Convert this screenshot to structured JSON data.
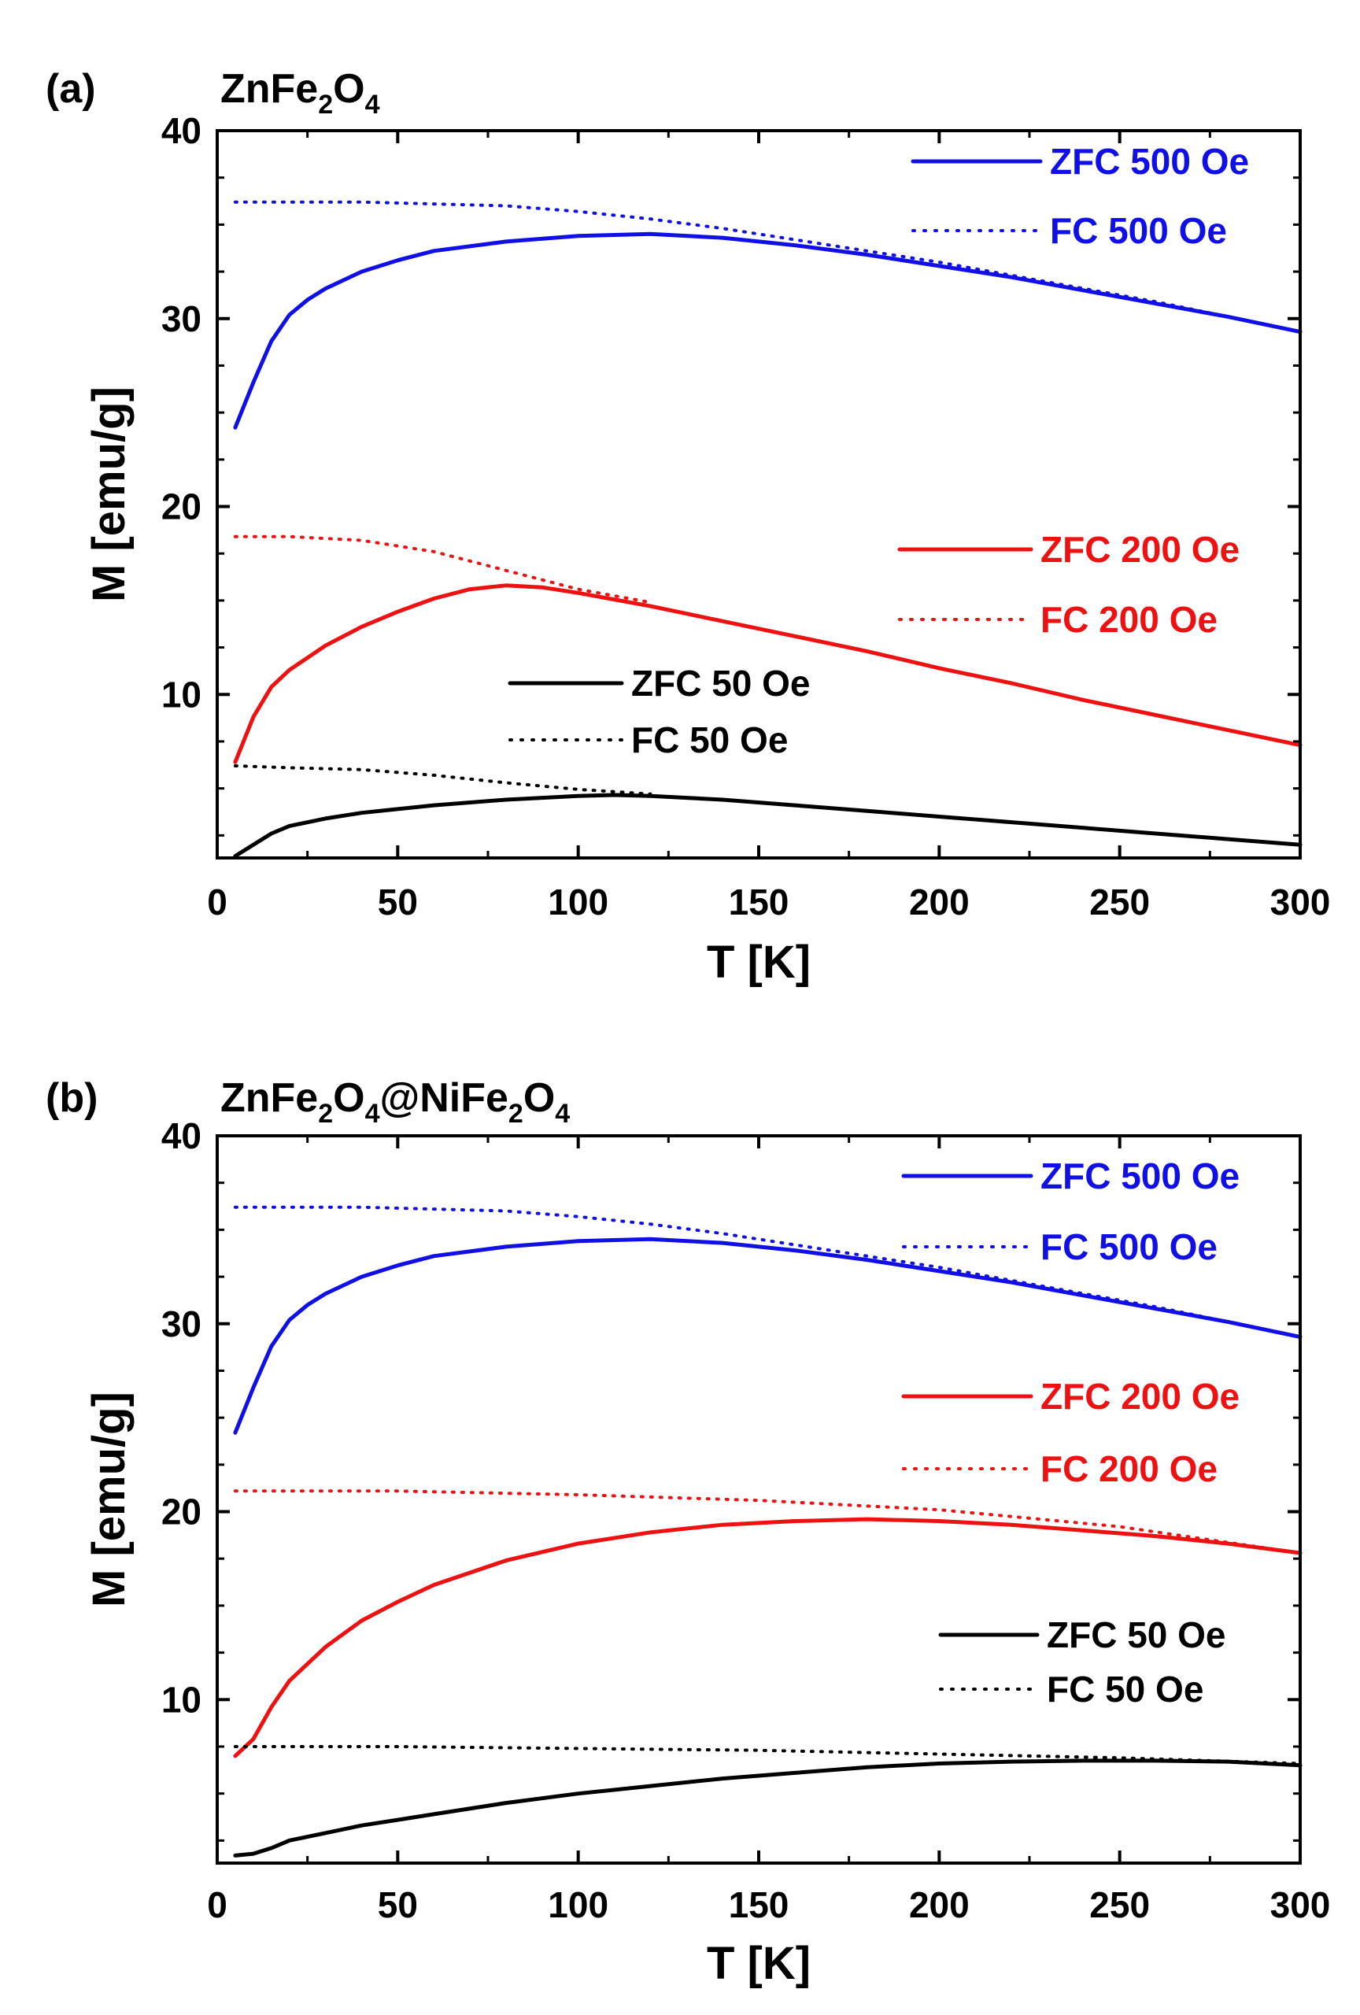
{
  "colors": {
    "blue": "#1010e6",
    "red": "#ee1111",
    "black": "#000000"
  },
  "chart_data": [
    {
      "type": "line",
      "panel_label": "(a)",
      "title": "ZnFe₂O₄",
      "xlabel": "T [K]",
      "ylabel": "M [emu/g]",
      "xlim": [
        0,
        300
      ],
      "ylim": [
        1.3,
        40
      ],
      "xticks": [
        "0",
        "50",
        "100",
        "150",
        "200",
        "250",
        "300"
      ],
      "yticks": [
        "10",
        "20",
        "30",
        "40"
      ],
      "xtick_values": [
        0,
        50,
        100,
        150,
        200,
        250,
        300
      ],
      "ytick_values": [
        10,
        20,
        30,
        40
      ],
      "series": [
        {
          "name": "ZFC 500 Oe",
          "color": "#1010e6",
          "dashed": false,
          "x": [
            5,
            10,
            15,
            20,
            25,
            30,
            40,
            50,
            60,
            80,
            100,
            120,
            140,
            160,
            180,
            200,
            220,
            240,
            260,
            280,
            300
          ],
          "y": [
            24.2,
            26.6,
            28.8,
            30.2,
            31.0,
            31.6,
            32.5,
            33.1,
            33.6,
            34.1,
            34.4,
            34.5,
            34.3,
            33.9,
            33.4,
            32.8,
            32.2,
            31.5,
            30.8,
            30.1,
            29.3
          ]
        },
        {
          "name": "FC 500 Oe",
          "color": "#1010e6",
          "dashed": true,
          "x": [
            5,
            20,
            40,
            60,
            80,
            100,
            120,
            140,
            160,
            180,
            200,
            220,
            240,
            260,
            280,
            300
          ],
          "y": [
            36.2,
            36.2,
            36.2,
            36.1,
            36.0,
            35.7,
            35.3,
            34.8,
            34.2,
            33.6,
            33.0,
            32.3,
            31.6,
            30.9,
            30.1,
            29.3
          ]
        },
        {
          "name": "ZFC 200 Oe",
          "color": "#ee1111",
          "dashed": false,
          "x": [
            5,
            10,
            15,
            20,
            30,
            40,
            50,
            60,
            70,
            80,
            90,
            100,
            120,
            140,
            160,
            180,
            200,
            220,
            240,
            260,
            280,
            300
          ],
          "y": [
            6.4,
            8.8,
            10.4,
            11.3,
            12.6,
            13.6,
            14.4,
            15.1,
            15.6,
            15.8,
            15.7,
            15.4,
            14.7,
            13.9,
            13.1,
            12.3,
            11.4,
            10.6,
            9.7,
            8.9,
            8.1,
            7.3
          ]
        },
        {
          "name": "FC 200 Oe",
          "color": "#ee1111",
          "dashed": true,
          "x": [
            5,
            20,
            40,
            60,
            80,
            100,
            120
          ],
          "y": [
            18.4,
            18.4,
            18.2,
            17.6,
            16.6,
            15.6,
            14.9
          ]
        },
        {
          "name": "ZFC 50 Oe",
          "color": "#000000",
          "dashed": false,
          "x": [
            5,
            10,
            15,
            20,
            30,
            40,
            50,
            60,
            80,
            100,
            110,
            120,
            140,
            160,
            180,
            200,
            220,
            240,
            260,
            280,
            300
          ],
          "y": [
            1.4,
            2.0,
            2.6,
            3.0,
            3.4,
            3.7,
            3.9,
            4.1,
            4.4,
            4.6,
            4.65,
            4.6,
            4.4,
            4.1,
            3.8,
            3.5,
            3.2,
            2.9,
            2.6,
            2.3,
            2.0
          ]
        },
        {
          "name": "FC 50 Oe",
          "color": "#000000",
          "dashed": true,
          "x": [
            5,
            20,
            40,
            60,
            80,
            100,
            120
          ],
          "y": [
            6.2,
            6.1,
            6.0,
            5.7,
            5.3,
            4.95,
            4.7
          ]
        }
      ],
      "legend": [
        {
          "label": "ZFC 500 Oe",
          "color": "#1010e6",
          "dashed": false
        },
        {
          "label": "FC 500 Oe",
          "color": "#1010e6",
          "dashed": true
        },
        {
          "label": "ZFC 200 Oe",
          "color": "#ee1111",
          "dashed": false
        },
        {
          "label": "FC 200 Oe",
          "color": "#ee1111",
          "dashed": true
        },
        {
          "label": "ZFC 50 Oe",
          "color": "#000000",
          "dashed": false
        },
        {
          "label": "FC 50 Oe",
          "color": "#000000",
          "dashed": true
        }
      ]
    },
    {
      "type": "line",
      "panel_label": "(b)",
      "title": "ZnFe₂O₄@NiFe₂O₄",
      "xlabel": "T [K]",
      "ylabel": "M [emu/g]",
      "xlim": [
        0,
        300
      ],
      "ylim": [
        1.3,
        40
      ],
      "xticks": [
        "0",
        "50",
        "100",
        "150",
        "200",
        "250",
        "300"
      ],
      "yticks": [
        "10",
        "20",
        "30",
        "40"
      ],
      "xtick_values": [
        0,
        50,
        100,
        150,
        200,
        250,
        300
      ],
      "ytick_values": [
        10,
        20,
        30,
        40
      ],
      "series": [
        {
          "name": "ZFC 500 Oe",
          "color": "#1010e6",
          "dashed": false,
          "x": [
            5,
            10,
            15,
            20,
            25,
            30,
            40,
            50,
            60,
            80,
            100,
            120,
            140,
            160,
            180,
            200,
            220,
            240,
            260,
            280,
            300
          ],
          "y": [
            24.2,
            26.6,
            28.8,
            30.2,
            31.0,
            31.6,
            32.5,
            33.1,
            33.6,
            34.1,
            34.4,
            34.5,
            34.3,
            33.9,
            33.4,
            32.8,
            32.2,
            31.5,
            30.8,
            30.1,
            29.3
          ]
        },
        {
          "name": "FC 500 Oe",
          "color": "#1010e6",
          "dashed": true,
          "x": [
            5,
            20,
            40,
            60,
            80,
            100,
            120,
            140,
            160,
            180,
            200,
            220,
            240,
            260,
            280,
            300
          ],
          "y": [
            36.2,
            36.2,
            36.2,
            36.1,
            36.0,
            35.7,
            35.3,
            34.8,
            34.2,
            33.6,
            33.0,
            32.3,
            31.6,
            30.9,
            30.1,
            29.3
          ]
        },
        {
          "name": "ZFC 200 Oe",
          "color": "#ee1111",
          "dashed": false,
          "x": [
            5,
            10,
            15,
            20,
            30,
            40,
            50,
            60,
            80,
            100,
            120,
            140,
            160,
            180,
            200,
            220,
            240,
            260,
            280,
            300
          ],
          "y": [
            7.0,
            7.9,
            9.6,
            11.0,
            12.8,
            14.2,
            15.2,
            16.1,
            17.4,
            18.3,
            18.9,
            19.3,
            19.5,
            19.6,
            19.5,
            19.3,
            19.0,
            18.7,
            18.3,
            17.8
          ]
        },
        {
          "name": "FC 200 Oe",
          "color": "#ee1111",
          "dashed": true,
          "x": [
            5,
            50,
            100,
            150,
            200,
            250,
            300
          ],
          "y": [
            21.1,
            21.1,
            20.9,
            20.6,
            20.1,
            19.2,
            17.8
          ]
        },
        {
          "name": "ZFC 50 Oe",
          "color": "#000000",
          "dashed": false,
          "x": [
            5,
            10,
            15,
            20,
            30,
            40,
            50,
            60,
            80,
            100,
            120,
            140,
            160,
            180,
            200,
            220,
            240,
            260,
            280,
            300
          ],
          "y": [
            1.7,
            1.8,
            2.1,
            2.5,
            2.9,
            3.3,
            3.6,
            3.9,
            4.5,
            5.0,
            5.4,
            5.8,
            6.1,
            6.4,
            6.6,
            6.7,
            6.75,
            6.75,
            6.7,
            6.5
          ]
        },
        {
          "name": "FC 50 Oe",
          "color": "#000000",
          "dashed": true,
          "x": [
            5,
            50,
            100,
            150,
            200,
            250,
            300
          ],
          "y": [
            7.5,
            7.5,
            7.4,
            7.3,
            7.1,
            6.9,
            6.6
          ]
        }
      ],
      "legend": [
        {
          "label": "ZFC 500 Oe",
          "color": "#1010e6",
          "dashed": false
        },
        {
          "label": "FC 500 Oe",
          "color": "#1010e6",
          "dashed": true
        },
        {
          "label": "ZFC 200 Oe",
          "color": "#ee1111",
          "dashed": false
        },
        {
          "label": "FC 200 Oe",
          "color": "#ee1111",
          "dashed": true
        },
        {
          "label": "ZFC 50 Oe",
          "color": "#000000",
          "dashed": false
        },
        {
          "label": "FC 50 Oe",
          "color": "#000000",
          "dashed": true
        }
      ]
    }
  ]
}
